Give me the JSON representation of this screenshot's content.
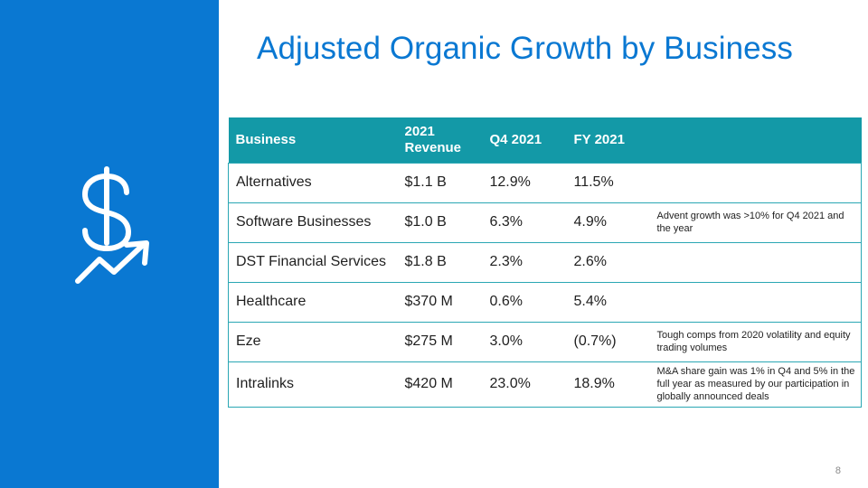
{
  "slide": {
    "title": "Adjusted Organic Growth by Business",
    "page_number": "8",
    "icon": "dollar-growth-arrow-icon",
    "accent_color": "#0a78d2",
    "header_color": "#1399a7"
  },
  "table": {
    "headers": [
      "Business",
      "2021 Revenue",
      "Q4 2021",
      "FY 2021",
      ""
    ],
    "rows": [
      {
        "business": "Alternatives",
        "revenue": "$1.1 B",
        "q4": "12.9%",
        "fy": "11.5%",
        "note": ""
      },
      {
        "business": "Software Businesses",
        "revenue": "$1.0 B",
        "q4": "6.3%",
        "fy": "4.9%",
        "note": "Advent growth was >10% for Q4 2021 and the year"
      },
      {
        "business": "DST Financial Services",
        "revenue": "$1.8 B",
        "q4": "2.3%",
        "fy": "2.6%",
        "note": ""
      },
      {
        "business": "Healthcare",
        "revenue": "$370 M",
        "q4": "0.6%",
        "fy": "5.4%",
        "note": ""
      },
      {
        "business": "Eze",
        "revenue": "$275 M",
        "q4": "3.0%",
        "fy": "(0.7%)",
        "note": "Tough comps from 2020 volatility and equity trading volumes"
      },
      {
        "business": "Intralinks",
        "revenue": "$420 M",
        "q4": "23.0%",
        "fy": "18.9%",
        "note": "M&A share gain was 1% in Q4 and 5% in the full year as measured by our participation in globally announced deals"
      }
    ]
  }
}
